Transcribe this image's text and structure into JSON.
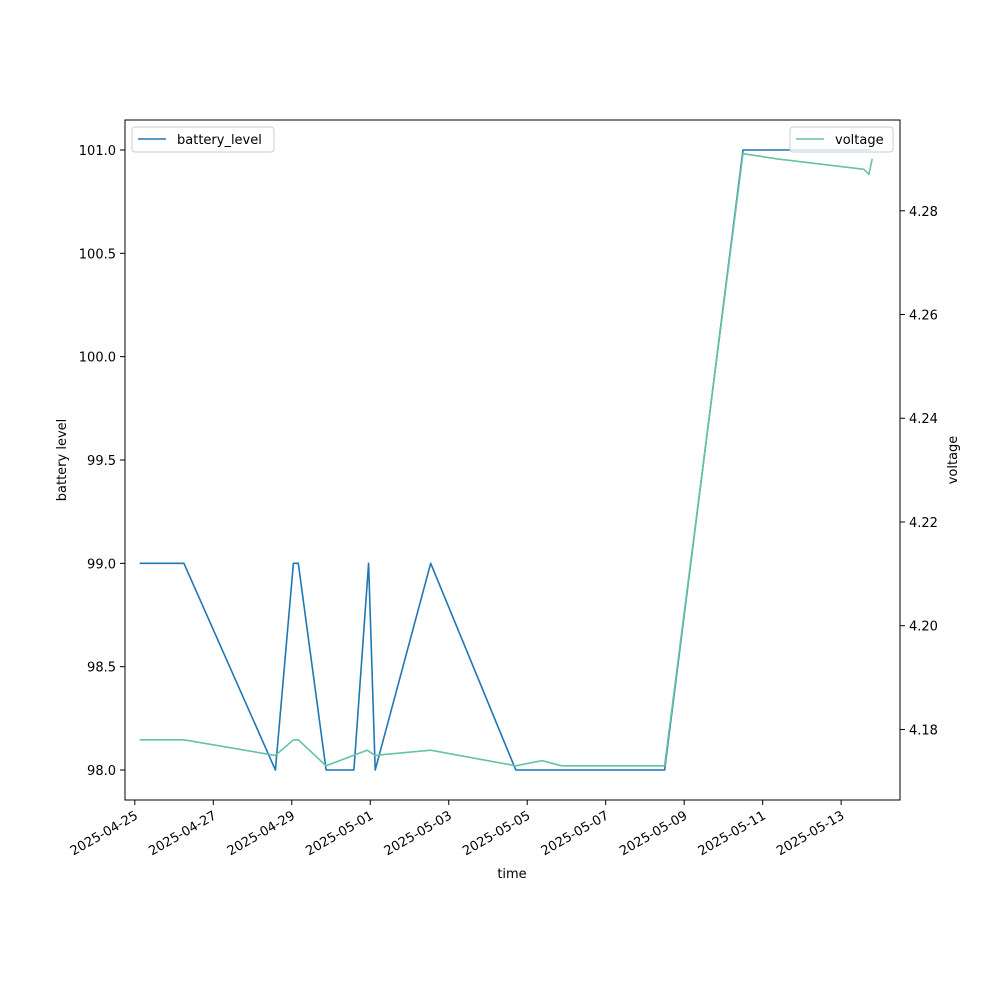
{
  "chart_data": {
    "type": "line",
    "xlabel": "time",
    "ylabel": "battery level",
    "y2label": "voltage",
    "x_ticks": [
      "2025-04-25",
      "2025-04-27",
      "2025-04-29",
      "2025-05-01",
      "2025-05-03",
      "2025-05-05",
      "2025-05-07",
      "2025-05-09",
      "2025-05-11",
      "2025-05-13"
    ],
    "x_range": [
      "2024-04-24T18:00",
      "2025-05-14T12:00"
    ],
    "y_ticks": [
      "98.0",
      "98.5",
      "99.0",
      "99.5",
      "100.0",
      "100.5",
      "101.0"
    ],
    "ylim": [
      97.855,
      101.145
    ],
    "y2_ticks": [
      "4.18",
      "4.20",
      "4.22",
      "4.24",
      "4.26",
      "4.28"
    ],
    "y2lim": [
      4.1664,
      4.2975
    ],
    "grid": false,
    "series": [
      {
        "name": "battery_level",
        "axis": "left",
        "color": "#1f77b4",
        "legend": "upper-left",
        "points": [
          [
            "2025-04-25T03:00",
            99.0
          ],
          [
            "2025-04-26T06:00",
            99.0
          ],
          [
            "2025-04-28T14:00",
            98.0
          ],
          [
            "2025-04-29T01:00",
            99.0
          ],
          [
            "2025-04-29T04:00",
            99.0
          ],
          [
            "2025-04-29T21:00",
            98.0
          ],
          [
            "2025-04-30T14:00",
            98.0
          ],
          [
            "2025-04-30T23:00",
            99.0
          ],
          [
            "2025-05-01T03:00",
            98.0
          ],
          [
            "2025-05-02T13:00",
            99.0
          ],
          [
            "2025-05-04T17:00",
            98.0
          ],
          [
            "2025-05-08T12:00",
            98.0
          ],
          [
            "2025-05-10T12:00",
            101.0
          ],
          [
            "2025-05-13T18:00",
            101.0
          ]
        ]
      },
      {
        "name": "voltage",
        "axis": "right",
        "color": "#66c2a5",
        "legend": "upper-right",
        "points": [
          [
            "2025-04-25T03:00",
            4.178
          ],
          [
            "2025-04-26T06:00",
            4.178
          ],
          [
            "2025-04-28T14:00",
            4.175
          ],
          [
            "2025-04-29T01:00",
            4.178
          ],
          [
            "2025-04-29T04:00",
            4.178
          ],
          [
            "2025-04-29T21:00",
            4.173
          ],
          [
            "2025-04-30T22:00",
            4.176
          ],
          [
            "2025-05-01T03:00",
            4.175
          ],
          [
            "2025-05-02T13:00",
            4.176
          ],
          [
            "2025-05-04T17:00",
            4.173
          ],
          [
            "2025-05-05T09:00",
            4.174
          ],
          [
            "2025-05-05T21:00",
            4.173
          ],
          [
            "2025-05-08T12:00",
            4.173
          ],
          [
            "2025-05-10T12:00",
            4.291
          ],
          [
            "2025-05-11T09:00",
            4.29
          ],
          [
            "2025-05-13T14:00",
            4.288
          ],
          [
            "2025-05-13T17:00",
            4.287
          ],
          [
            "2025-05-13T19:00",
            4.29
          ]
        ]
      }
    ]
  }
}
